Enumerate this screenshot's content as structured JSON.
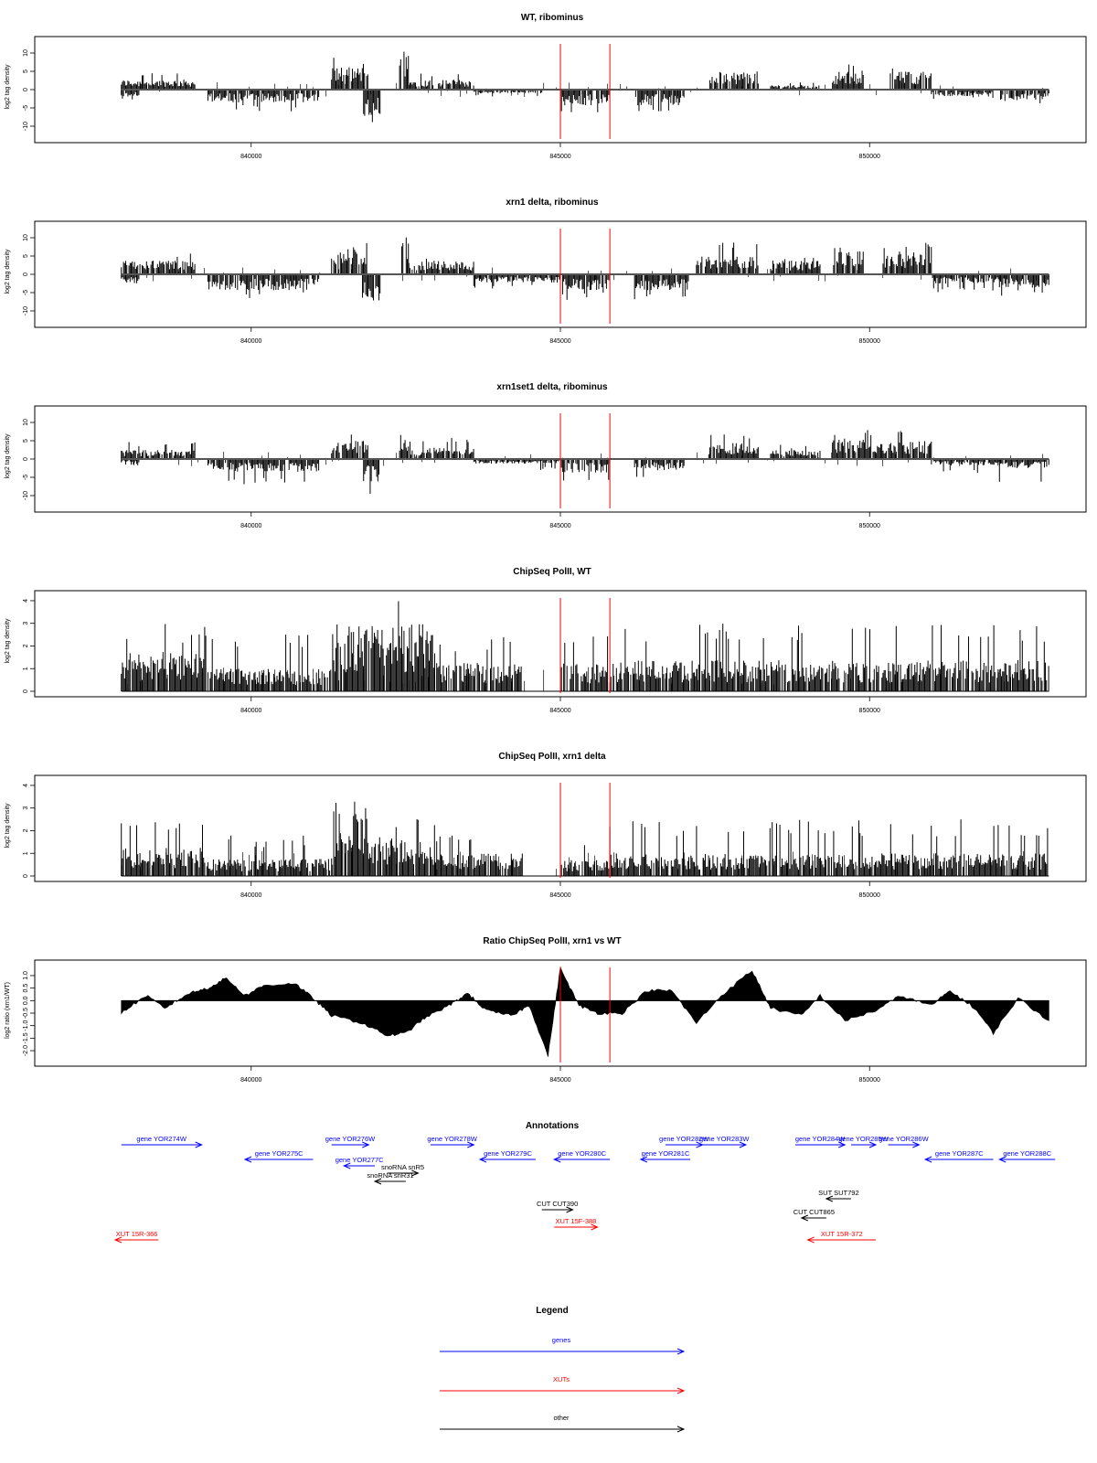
{
  "colors": {
    "gene": "#0000ff",
    "xut": "#ff0000",
    "other": "#000000",
    "marker": "#ff0000",
    "data": "#000000"
  },
  "x_axis": {
    "ticks": [
      840000,
      845000,
      850000
    ],
    "tick_labels": [
      "840000",
      "845000",
      "850000"
    ]
  },
  "markers": [
    845000,
    845800
  ],
  "chart_data": [
    {
      "type": "bar",
      "title": "WT, ribominus",
      "ylabel": "log2 tag density",
      "ylim": [
        -13,
        13
      ],
      "yticks": [
        10,
        5,
        0,
        -5,
        -10
      ],
      "ytick_labels": [
        "10",
        "5",
        "0",
        "-5",
        "-10"
      ],
      "x_range": [
        837900,
        852900
      ],
      "segments": [
        {
          "start": 837900,
          "end": 839100,
          "strand": "+",
          "mean": 2.2,
          "max": 5
        },
        {
          "start": 837900,
          "end": 838200,
          "strand": "-",
          "mean": 1.5,
          "max": 3
        },
        {
          "start": 839300,
          "end": 841100,
          "strand": "-",
          "mean": 2.8,
          "max": 6
        },
        {
          "start": 841300,
          "end": 841900,
          "strand": "+",
          "mean": 5,
          "max": 9
        },
        {
          "start": 841800,
          "end": 842100,
          "strand": "-",
          "mean": 6,
          "max": 12
        },
        {
          "start": 842400,
          "end": 842550,
          "strand": "+",
          "mean": 8,
          "max": 12
        },
        {
          "start": 842550,
          "end": 843600,
          "strand": "+",
          "mean": 2.2,
          "max": 5
        },
        {
          "start": 843600,
          "end": 844700,
          "strand": "-",
          "mean": 0.8,
          "max": 2
        },
        {
          "start": 845000,
          "end": 845800,
          "strand": "-",
          "mean": 3.5,
          "max": 7
        },
        {
          "start": 846200,
          "end": 847000,
          "strand": "-",
          "mean": 3.5,
          "max": 6
        },
        {
          "start": 847400,
          "end": 848200,
          "strand": "+",
          "mean": 4,
          "max": 9
        },
        {
          "start": 848400,
          "end": 849200,
          "strand": "+",
          "mean": 1,
          "max": 2
        },
        {
          "start": 849400,
          "end": 849900,
          "strand": "+",
          "mean": 4,
          "max": 7
        },
        {
          "start": 850300,
          "end": 851000,
          "strand": "+",
          "mean": 4,
          "max": 6
        },
        {
          "start": 851000,
          "end": 852000,
          "strand": "-",
          "mean": 1.5,
          "max": 3
        },
        {
          "start": 852100,
          "end": 852900,
          "strand": "-",
          "mean": 2.5,
          "max": 5
        }
      ]
    },
    {
      "type": "bar",
      "title": "xrn1 delta, ribominus",
      "ylabel": "log2 tag density",
      "ylim": [
        -13,
        13
      ],
      "yticks": [
        10,
        5,
        0,
        -5,
        -10
      ],
      "ytick_labels": [
        "10",
        "5",
        "0",
        "-5",
        "-10"
      ],
      "x_range": [
        837900,
        852900
      ],
      "segments": [
        {
          "start": 837900,
          "end": 839100,
          "strand": "+",
          "mean": 3,
          "max": 6
        },
        {
          "start": 837900,
          "end": 838200,
          "strand": "-",
          "mean": 2,
          "max": 4
        },
        {
          "start": 839300,
          "end": 841100,
          "strand": "-",
          "mean": 3.5,
          "max": 7
        },
        {
          "start": 841300,
          "end": 841900,
          "strand": "+",
          "mean": 5.5,
          "max": 9
        },
        {
          "start": 841800,
          "end": 842100,
          "strand": "-",
          "mean": 6,
          "max": 12
        },
        {
          "start": 842400,
          "end": 842550,
          "strand": "+",
          "mean": 9,
          "max": 13
        },
        {
          "start": 842550,
          "end": 843600,
          "strand": "+",
          "mean": 3,
          "max": 6
        },
        {
          "start": 843600,
          "end": 845000,
          "strand": "-",
          "mean": 1.8,
          "max": 4
        },
        {
          "start": 845000,
          "end": 845800,
          "strand": "-",
          "mean": 3.5,
          "max": 7
        },
        {
          "start": 846200,
          "end": 847100,
          "strand": "-",
          "mean": 3.5,
          "max": 7
        },
        {
          "start": 847200,
          "end": 848200,
          "strand": "+",
          "mean": 4,
          "max": 9
        },
        {
          "start": 848400,
          "end": 849200,
          "strand": "+",
          "mean": 3,
          "max": 5
        },
        {
          "start": 849400,
          "end": 849900,
          "strand": "+",
          "mean": 5,
          "max": 8
        },
        {
          "start": 850200,
          "end": 851000,
          "strand": "+",
          "mean": 5,
          "max": 9
        },
        {
          "start": 851000,
          "end": 852100,
          "strand": "-",
          "mean": 2,
          "max": 5
        },
        {
          "start": 852100,
          "end": 852900,
          "strand": "-",
          "mean": 3,
          "max": 6
        }
      ]
    },
    {
      "type": "bar",
      "title": "xrn1set1 delta, ribominus",
      "ylabel": "log2 tag density",
      "ylim": [
        -13,
        13
      ],
      "yticks": [
        10,
        5,
        0,
        -5,
        -10
      ],
      "ytick_labels": [
        "10",
        "5",
        "0",
        "-5",
        "-10"
      ],
      "x_range": [
        837900,
        852900
      ],
      "segments": [
        {
          "start": 837900,
          "end": 839100,
          "strand": "+",
          "mean": 2,
          "max": 5
        },
        {
          "start": 837900,
          "end": 838200,
          "strand": "-",
          "mean": 1.5,
          "max": 4
        },
        {
          "start": 839300,
          "end": 841100,
          "strand": "-",
          "mean": 2.8,
          "max": 7
        },
        {
          "start": 841300,
          "end": 841900,
          "strand": "+",
          "mean": 4,
          "max": 8
        },
        {
          "start": 841800,
          "end": 842100,
          "strand": "-",
          "mean": 5,
          "max": 10
        },
        {
          "start": 842400,
          "end": 842550,
          "strand": "+",
          "mean": 6,
          "max": 9
        },
        {
          "start": 842550,
          "end": 843600,
          "strand": "+",
          "mean": 2.5,
          "max": 6
        },
        {
          "start": 843600,
          "end": 845000,
          "strand": "-",
          "mean": 1,
          "max": 3
        },
        {
          "start": 845000,
          "end": 845800,
          "strand": "-",
          "mean": 3,
          "max": 6
        },
        {
          "start": 846200,
          "end": 847000,
          "strand": "-",
          "mean": 2.5,
          "max": 5
        },
        {
          "start": 847400,
          "end": 848200,
          "strand": "+",
          "mean": 3.5,
          "max": 8
        },
        {
          "start": 848400,
          "end": 849200,
          "strand": "+",
          "mean": 2,
          "max": 4
        },
        {
          "start": 849400,
          "end": 850200,
          "strand": "+",
          "mean": 4.5,
          "max": 9
        },
        {
          "start": 850200,
          "end": 851000,
          "strand": "+",
          "mean": 4,
          "max": 9
        },
        {
          "start": 851000,
          "end": 852100,
          "strand": "-",
          "mean": 1.5,
          "max": 4
        },
        {
          "start": 852100,
          "end": 852900,
          "strand": "-",
          "mean": 2,
          "max": 7
        }
      ]
    },
    {
      "type": "bar",
      "title": "ChipSeq PolII, WT",
      "ylabel": "log2 tag density",
      "ylim": [
        0,
        4.2
      ],
      "yticks": [
        0,
        1,
        2,
        3,
        4
      ],
      "ytick_labels": [
        "0",
        "1",
        "2",
        "3",
        "4"
      ],
      "x_range": [
        837900,
        852900
      ],
      "segments": [
        {
          "start": 837900,
          "end": 839300,
          "strand": "+",
          "mean": 1.4,
          "max": 3
        },
        {
          "start": 839300,
          "end": 841300,
          "strand": "+",
          "mean": 0.8,
          "max": 2.5
        },
        {
          "start": 841300,
          "end": 843000,
          "strand": "+",
          "mean": 2.4,
          "max": 4
        },
        {
          "start": 843000,
          "end": 844400,
          "strand": "+",
          "mean": 1,
          "max": 2.5
        },
        {
          "start": 845000,
          "end": 845800,
          "strand": "+",
          "mean": 1,
          "max": 2.5
        },
        {
          "start": 845800,
          "end": 852900,
          "strand": "+",
          "mean": 1.1,
          "max": 3
        }
      ]
    },
    {
      "type": "bar",
      "title": "ChipSeq PolII, xrn1 delta",
      "ylabel": "log2 tag density",
      "ylim": [
        0,
        4.2
      ],
      "yticks": [
        0,
        1,
        2,
        3,
        4
      ],
      "ytick_labels": [
        "0",
        "1",
        "2",
        "3",
        "4"
      ],
      "x_range": [
        837900,
        852900
      ],
      "segments": [
        {
          "start": 837900,
          "end": 839300,
          "strand": "+",
          "mean": 1,
          "max": 2.5
        },
        {
          "start": 839300,
          "end": 841300,
          "strand": "+",
          "mean": 0.6,
          "max": 1.8
        },
        {
          "start": 841300,
          "end": 841900,
          "strand": "+",
          "mean": 2.2,
          "max": 3.5
        },
        {
          "start": 841900,
          "end": 843000,
          "strand": "+",
          "mean": 1.4,
          "max": 2.8
        },
        {
          "start": 843000,
          "end": 844400,
          "strand": "+",
          "mean": 0.8,
          "max": 2
        },
        {
          "start": 845000,
          "end": 845800,
          "strand": "+",
          "mean": 0.6,
          "max": 1.5
        },
        {
          "start": 845800,
          "end": 852900,
          "strand": "+",
          "mean": 0.8,
          "max": 2.5
        }
      ]
    },
    {
      "type": "area",
      "title": "Ratio ChipSeq PolII, xrn1 vs WT",
      "ylabel": "log2 ratio (xrn1/WT)",
      "ylim": [
        -2.4,
        1.4
      ],
      "yticks": [
        1,
        0.5,
        0,
        -0.5,
        -1,
        -1.5,
        -2
      ],
      "ytick_labels": [
        "1.0",
        "0.5",
        "0.0",
        "-0.5",
        "-1.0",
        "-1.5",
        "-2.0"
      ],
      "x_range": [
        837900,
        852900
      ],
      "points": [
        [
          837900,
          -0.5
        ],
        [
          838300,
          0.2
        ],
        [
          838600,
          -0.3
        ],
        [
          839000,
          0.3
        ],
        [
          839300,
          0.5
        ],
        [
          839600,
          0.9
        ],
        [
          839900,
          0.2
        ],
        [
          840200,
          0.6
        ],
        [
          840700,
          0.7
        ],
        [
          841000,
          0.1
        ],
        [
          841300,
          -0.6
        ],
        [
          841800,
          -0.9
        ],
        [
          842200,
          -1.4
        ],
        [
          842500,
          -1.3
        ],
        [
          842800,
          -0.7
        ],
        [
          843200,
          -0.2
        ],
        [
          843500,
          0.3
        ],
        [
          843800,
          -0.4
        ],
        [
          844200,
          -0.6
        ],
        [
          844500,
          -0.2
        ],
        [
          844800,
          -2.2
        ],
        [
          845000,
          1.3
        ],
        [
          845300,
          -0.2
        ],
        [
          845600,
          -0.5
        ],
        [
          846000,
          -0.5
        ],
        [
          846400,
          0.4
        ],
        [
          846800,
          0.4
        ],
        [
          847200,
          -0.9
        ],
        [
          847600,
          0.2
        ],
        [
          848100,
          1.2
        ],
        [
          848400,
          -0.3
        ],
        [
          848900,
          -0.6
        ],
        [
          849200,
          0.2
        ],
        [
          849600,
          -0.8
        ],
        [
          850100,
          -0.4
        ],
        [
          850500,
          0.2
        ],
        [
          851000,
          -0.2
        ],
        [
          851300,
          0.4
        ],
        [
          851700,
          -0.3
        ],
        [
          852000,
          -1.3
        ],
        [
          852400,
          0.1
        ],
        [
          852900,
          -0.8
        ]
      ]
    }
  ],
  "annotations": {
    "title": "Annotations",
    "features": [
      {
        "label": "gene YOR274W",
        "type": "gene",
        "strand": "+",
        "start": 837900,
        "end": 839200,
        "row": 0
      },
      {
        "label": "gene YOR275C",
        "type": "gene",
        "strand": "-",
        "start": 839900,
        "end": 841000,
        "row": 1
      },
      {
        "label": "gene YOR276W",
        "type": "gene",
        "strand": "+",
        "start": 841300,
        "end": 841900,
        "row": 0
      },
      {
        "label": "gene YOR277C",
        "type": "gene",
        "strand": "-",
        "start": 841500,
        "end": 842000,
        "row": 2
      },
      {
        "label": "gene YOR278W",
        "type": "gene",
        "strand": "+",
        "start": 842900,
        "end": 843600,
        "row": 0
      },
      {
        "label": "gene YOR279C",
        "type": "gene",
        "strand": "-",
        "start": 843700,
        "end": 844600,
        "row": 1
      },
      {
        "label": "gene YOR280C",
        "type": "gene",
        "strand": "-",
        "start": 844900,
        "end": 845800,
        "row": 1
      },
      {
        "label": "gene YOR281C",
        "type": "gene",
        "strand": "-",
        "start": 846300,
        "end": 847100,
        "row": 1
      },
      {
        "label": "gene YOR282W",
        "type": "gene",
        "strand": "+",
        "start": 846700,
        "end": 847300,
        "row": 0
      },
      {
        "label": "gene YOR283W",
        "type": "gene",
        "strand": "+",
        "start": 847300,
        "end": 848000,
        "row": 0
      },
      {
        "label": "gene YOR284W",
        "type": "gene",
        "strand": "+",
        "start": 848800,
        "end": 849600,
        "row": 0
      },
      {
        "label": "gene YOR285W",
        "type": "gene",
        "strand": "+",
        "start": 849700,
        "end": 850100,
        "row": 0
      },
      {
        "label": "gene YOR286W",
        "type": "gene",
        "strand": "+",
        "start": 850300,
        "end": 850800,
        "row": 0
      },
      {
        "label": "gene YOR287C",
        "type": "gene",
        "strand": "-",
        "start": 850900,
        "end": 852000,
        "row": 1
      },
      {
        "label": "gene YOR288C",
        "type": "gene",
        "strand": "-",
        "start": 852100,
        "end": 853000,
        "row": 1
      },
      {
        "label": "snoRNA snR5",
        "type": "other",
        "strand": "+",
        "start": 842200,
        "end": 842700,
        "row": 3
      },
      {
        "label": "snoRNA snR31",
        "type": "other",
        "strand": "-",
        "start": 842000,
        "end": 842500,
        "row": 4
      },
      {
        "label": "CUT CUT390",
        "type": "other",
        "strand": "+",
        "start": 844700,
        "end": 845200,
        "row": 5
      },
      {
        "label": "SUT SUT792",
        "type": "other",
        "strand": "-",
        "start": 849300,
        "end": 849700,
        "row": 6
      },
      {
        "label": "CUT CUT865",
        "type": "other",
        "strand": "-",
        "start": 848900,
        "end": 849300,
        "row": 7
      },
      {
        "label": "XUT 15F-388",
        "type": "xut",
        "strand": "+",
        "start": 844900,
        "end": 845600,
        "row": 8
      },
      {
        "label": "XUT 15R-372",
        "type": "xut",
        "strand": "-",
        "start": 849000,
        "end": 850100,
        "row": 9
      },
      {
        "label": "XUT 15R-366",
        "type": "xut",
        "strand": "-",
        "start": 837800,
        "end": 838500,
        "row": 9
      }
    ]
  },
  "legend": {
    "title": "Legend",
    "items": [
      {
        "label": "genes",
        "type": "gene"
      },
      {
        "label": "XUTs",
        "type": "xut"
      },
      {
        "label": "other",
        "type": "other"
      }
    ]
  }
}
